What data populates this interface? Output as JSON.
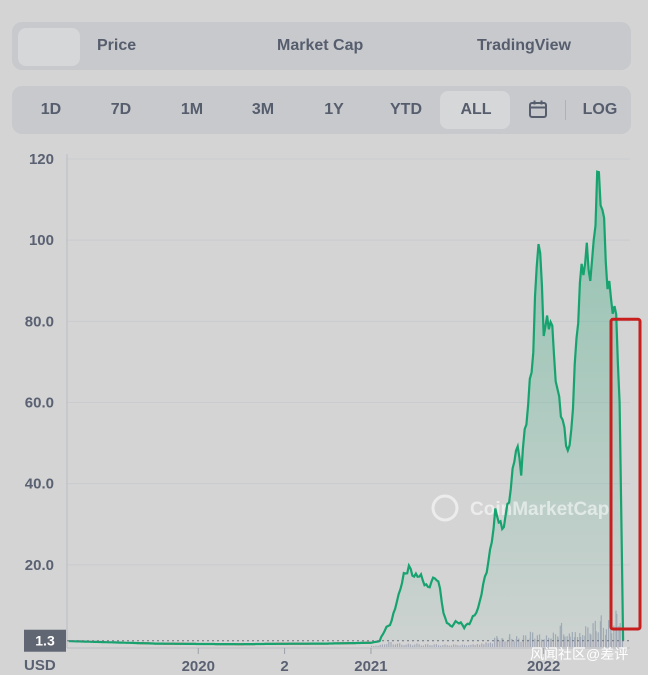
{
  "tabs": [
    {
      "label": ""
    },
    {
      "label": "Price"
    },
    {
      "label": "Market Cap"
    },
    {
      "label": "TradingView"
    }
  ],
  "ranges": [
    "1D",
    "7D",
    "1M",
    "3M",
    "1Y",
    "YTD",
    "ALL"
  ],
  "active_range": "ALL",
  "calendar_icon": "calendar-icon",
  "log_label": "LOG",
  "currency_label": "USD",
  "chart_watermark": "CoinMarketCap",
  "page_watermark": "风闻社区@差评",
  "colors": {
    "price_up": "#16a36f",
    "price_down": "#c0392b",
    "highlight_box": "#c81e1e",
    "volume": "#a5aab8"
  },
  "chart_data": {
    "type": "line",
    "title": "",
    "xlabel": "",
    "ylabel": "",
    "ylim": [
      0,
      120
    ],
    "y_ticks": [
      {
        "value": 120,
        "label": "120"
      },
      {
        "value": 100,
        "label": "100"
      },
      {
        "value": 80,
        "label": "80.0"
      },
      {
        "value": 60,
        "label": "60.0"
      },
      {
        "value": 40,
        "label": "40.0"
      },
      {
        "value": 20,
        "label": "20.0"
      }
    ],
    "x_ticks": [
      {
        "t": 2020.0,
        "label": "2020"
      },
      {
        "t": 2020.5,
        "label": "2"
      },
      {
        "t": 2021.0,
        "label": "2021"
      },
      {
        "t": 2022.0,
        "label": "2022"
      }
    ],
    "current_price": {
      "value": 1.3,
      "label": "1.3"
    },
    "grid": true,
    "series": [
      {
        "points": [
          [
            2019.25,
            1.2
          ],
          [
            2019.5,
            0.9
          ],
          [
            2019.75,
            0.6
          ],
          [
            2020.0,
            0.5
          ],
          [
            2020.25,
            0.45
          ],
          [
            2020.5,
            0.55
          ],
          [
            2020.75,
            0.6
          ],
          [
            2021.0,
            0.8
          ],
          [
            2021.05,
            1.2
          ],
          [
            2021.08,
            4.5
          ],
          [
            2021.12,
            6.0
          ],
          [
            2021.16,
            12.0
          ],
          [
            2021.19,
            18.0
          ],
          [
            2021.22,
            20.0
          ],
          [
            2021.25,
            16.5
          ],
          [
            2021.29,
            17.0
          ],
          [
            2021.33,
            15.0
          ],
          [
            2021.37,
            16.5
          ],
          [
            2021.4,
            14.0
          ],
          [
            2021.42,
            8.0
          ],
          [
            2021.46,
            5.0
          ],
          [
            2021.5,
            5.5
          ],
          [
            2021.54,
            5.0
          ],
          [
            2021.58,
            6.5
          ],
          [
            2021.62,
            8.5
          ],
          [
            2021.65,
            15.0
          ],
          [
            2021.69,
            24.0
          ],
          [
            2021.72,
            32.0
          ],
          [
            2021.76,
            28.0
          ],
          [
            2021.8,
            38.0
          ],
          [
            2021.84,
            48.0
          ],
          [
            2021.87,
            42.0
          ],
          [
            2021.9,
            58.0
          ],
          [
            2021.94,
            75.0
          ],
          [
            2021.97,
            98.0
          ],
          [
            2022.0,
            78.0
          ],
          [
            2022.04,
            85.0
          ],
          [
            2022.08,
            60.0
          ],
          [
            2022.12,
            52.0
          ],
          [
            2022.15,
            50.0
          ],
          [
            2022.18,
            68.0
          ],
          [
            2022.21,
            85.0
          ],
          [
            2022.25,
            98.0
          ],
          [
            2022.28,
            96.0
          ],
          [
            2022.31,
            113.0
          ],
          [
            2022.34,
            104.0
          ],
          [
            2022.37,
            92.0
          ],
          [
            2022.4,
            88.0
          ],
          [
            2022.42,
            80.0
          ],
          [
            2022.44,
            60.0
          ],
          [
            2022.46,
            1.3
          ]
        ]
      }
    ],
    "volume": [
      [
        2021.0,
        0.03
      ],
      [
        2021.05,
        0.05
      ],
      [
        2021.1,
        0.12
      ],
      [
        2021.15,
        0.08
      ],
      [
        2021.2,
        0.06
      ],
      [
        2021.25,
        0.07
      ],
      [
        2021.3,
        0.05
      ],
      [
        2021.35,
        0.06
      ],
      [
        2021.4,
        0.05
      ],
      [
        2021.45,
        0.05
      ],
      [
        2021.5,
        0.06
      ],
      [
        2021.55,
        0.05
      ],
      [
        2021.6,
        0.07
      ],
      [
        2021.65,
        0.1
      ],
      [
        2021.7,
        0.14
      ],
      [
        2021.73,
        0.3
      ],
      [
        2021.76,
        0.18
      ],
      [
        2021.8,
        0.25
      ],
      [
        2021.84,
        0.2
      ],
      [
        2021.88,
        0.22
      ],
      [
        2021.92,
        0.3
      ],
      [
        2021.96,
        0.26
      ],
      [
        2022.0,
        0.2
      ],
      [
        2022.04,
        0.28
      ],
      [
        2022.08,
        0.35
      ],
      [
        2022.1,
        0.6
      ],
      [
        2022.12,
        0.3
      ],
      [
        2022.15,
        0.35
      ],
      [
        2022.18,
        0.4
      ],
      [
        2022.21,
        0.3
      ],
      [
        2022.24,
        0.45
      ],
      [
        2022.27,
        0.5
      ],
      [
        2022.3,
        0.55
      ],
      [
        2022.33,
        0.6
      ],
      [
        2022.36,
        0.45
      ],
      [
        2022.39,
        0.55
      ],
      [
        2022.42,
        0.7
      ],
      [
        2022.44,
        0.8
      ],
      [
        2022.46,
        1.0
      ]
    ]
  }
}
